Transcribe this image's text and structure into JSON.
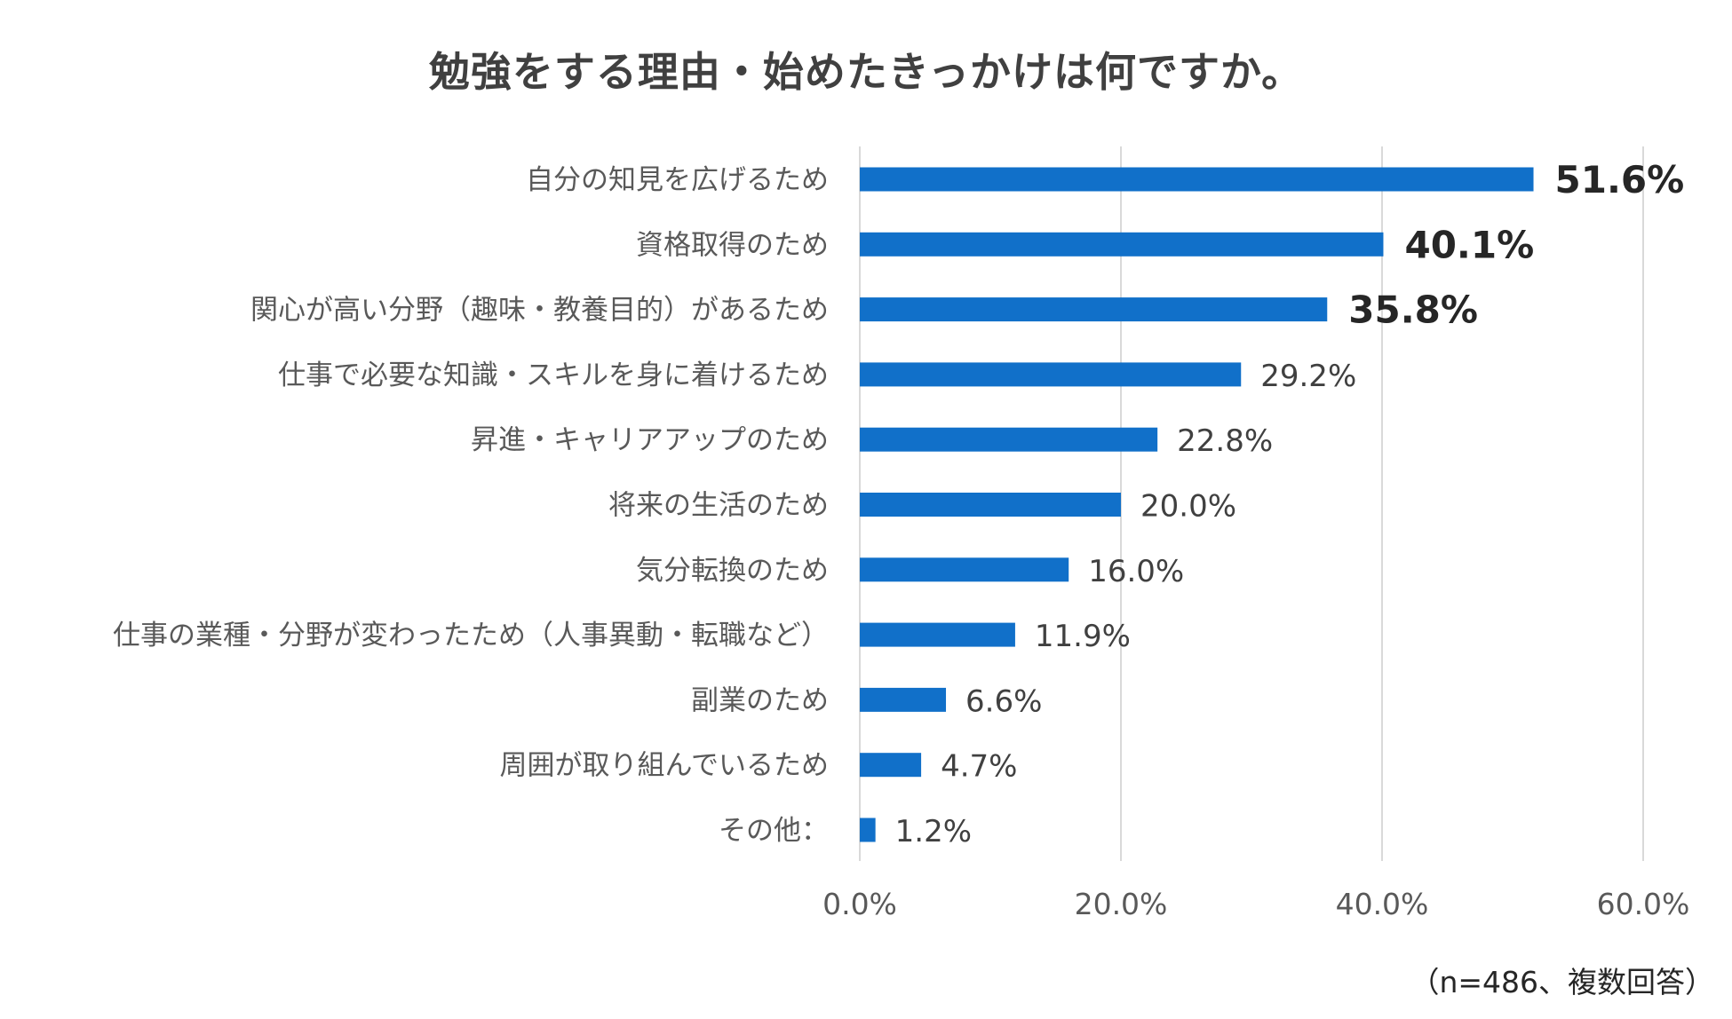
{
  "chart_data": {
    "type": "bar",
    "orientation": "horizontal",
    "title": "勉強をする理由・始めたきっかけは何ですか。",
    "categories": [
      "自分の知見を広げるため",
      "資格取得のため",
      "関心が高い分野（趣味・教養目的）があるため",
      "仕事で必要な知識・スキルを身に着けるため",
      "昇進・キャリアアップのため",
      "将来の生活のため",
      "気分転換のため",
      "仕事の業種・分野が変わったため（人事異動・転職など）",
      "副業のため",
      "周囲が取り組んでいるため",
      "その他："
    ],
    "values": [
      51.6,
      40.1,
      35.8,
      29.2,
      22.8,
      20.0,
      16.0,
      11.9,
      6.6,
      4.7,
      1.2
    ],
    "value_labels": [
      "51.6%",
      "40.1%",
      "35.8%",
      "29.2%",
      "22.8%",
      "20.0%",
      "16.0%",
      "11.9%",
      "6.6%",
      "4.7%",
      "1.2%"
    ],
    "emphasized_count": 3,
    "xlim": [
      0,
      60
    ],
    "xticks": [
      0,
      20,
      40,
      60
    ],
    "xtick_labels": [
      "0.0%",
      "20.0%",
      "40.0%",
      "60.0%"
    ],
    "grid": true,
    "xlabel": "",
    "ylabel": "",
    "bar_color": "#1170C9",
    "label_color": "#595959",
    "value_color": "#262626",
    "grid_color": "#D9D9D9"
  },
  "note": "（n=486、複数回答）"
}
